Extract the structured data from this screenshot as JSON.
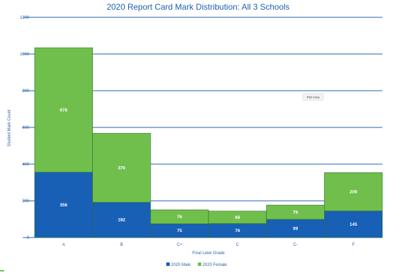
{
  "chart_data": {
    "type": "bar",
    "stacked": true,
    "title": "2020 Report Card Mark Distribution: All 3 Schools",
    "xlabel": "Final Leter Grade",
    "ylabel": "Student Mark Count",
    "categories": [
      "A",
      "B",
      "C+",
      "C",
      "C-",
      "F"
    ],
    "series": [
      {
        "name": "2020 Male",
        "values": [
          356,
          192,
          75,
          76,
          99,
          145
        ],
        "color": "#1760b5"
      },
      {
        "name": "2020 Female",
        "values": [
          678,
          376,
          76,
          68,
          78,
          209
        ],
        "color": "#70bf4c"
      }
    ],
    "ylim": [
      0,
      1200
    ],
    "yticks": [
      0,
      200,
      400,
      600,
      800,
      1000,
      1200
    ],
    "grid": true,
    "legend": "bottom",
    "gridline_color": "#1f5fb0"
  },
  "tooltip": {
    "label": "Plot Area"
  }
}
